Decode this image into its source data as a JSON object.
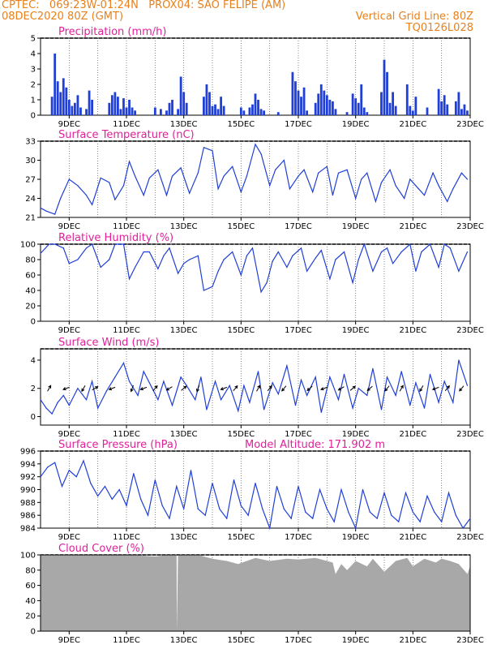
{
  "header": {
    "line1_left": "CPTEC:   069:23W-01:24N   PROX04: SAO FELIPE (AM)",
    "line2_left": "08DEC2020 80Z (GMT)",
    "line2_right": "Vertical Grid Line: 80Z",
    "line3_right": "TQ0126L028"
  },
  "colors": {
    "header": "#e8801c",
    "panel_title": "#e0209a",
    "series": "#1f3fd6",
    "cloud_fill": "#a8a8a8",
    "grid": "#555555"
  },
  "chart_data": [
    {
      "id": "precip",
      "type": "bar",
      "title": "Precipitation (mm/h)",
      "ylim": [
        0,
        5
      ],
      "yticks": [
        0,
        1,
        2,
        3,
        4,
        5
      ],
      "x_range": [
        8.0,
        23.0
      ],
      "x_tick_days": [
        9,
        11,
        13,
        15,
        17,
        19,
        21,
        23
      ],
      "x_tick_labels": [
        "9DEC",
        "11DEC",
        "13DEC",
        "15DEC",
        "17DEC",
        "19DEC",
        "21DEC",
        "23DEC"
      ],
      "x": [
        8.4,
        8.5,
        8.6,
        8.7,
        8.8,
        8.9,
        9.0,
        9.1,
        9.2,
        9.3,
        9.4,
        9.6,
        9.7,
        9.8,
        10.4,
        10.5,
        10.6,
        10.7,
        10.8,
        10.9,
        11.0,
        11.1,
        11.2,
        11.3,
        12.0,
        12.2,
        12.4,
        12.5,
        12.6,
        12.8,
        12.9,
        13.0,
        13.1,
        13.7,
        13.8,
        13.9,
        14.0,
        14.1,
        14.2,
        14.3,
        14.4,
        15.0,
        15.1,
        15.3,
        15.4,
        15.5,
        15.6,
        15.7,
        15.8,
        16.3,
        16.8,
        16.9,
        17.0,
        17.1,
        17.2,
        17.3,
        17.6,
        17.7,
        17.8,
        17.9,
        18.0,
        18.1,
        18.2,
        18.3,
        18.7,
        18.9,
        19.0,
        19.1,
        19.2,
        19.3,
        19.4,
        19.9,
        20.0,
        20.1,
        20.2,
        20.3,
        20.4,
        20.8,
        20.9,
        21.0,
        21.1,
        21.5,
        21.9,
        22.0,
        22.1,
        22.2,
        22.5,
        22.6,
        22.7,
        22.8,
        22.9
      ],
      "values": [
        1.2,
        4.0,
        2.2,
        1.5,
        2.4,
        1.8,
        1.0,
        0.6,
        0.8,
        1.3,
        0.5,
        0.4,
        1.6,
        1.0,
        0.8,
        1.3,
        1.5,
        1.2,
        0.4,
        1.1,
        0.5,
        1.0,
        0.5,
        0.3,
        0.5,
        0.4,
        0.3,
        0.8,
        1.0,
        0.4,
        2.5,
        1.5,
        0.8,
        1.2,
        2.0,
        1.5,
        0.6,
        0.7,
        0.4,
        1.2,
        0.6,
        0.5,
        0.3,
        0.5,
        0.7,
        1.4,
        1.0,
        0.4,
        0.3,
        0.2,
        2.8,
        2.2,
        1.6,
        1.2,
        1.8,
        0.3,
        0.8,
        1.4,
        2.0,
        1.6,
        1.3,
        1.0,
        0.9,
        0.4,
        0.2,
        1.4,
        1.1,
        0.8,
        2.0,
        0.5,
        0.2,
        1.5,
        3.6,
        2.8,
        0.8,
        1.5,
        0.6,
        2.0,
        0.6,
        0.3,
        1.2,
        0.5,
        1.7,
        0.9,
        1.3,
        0.7,
        0.9,
        1.5,
        0.4,
        0.7,
        0.3
      ]
    },
    {
      "id": "temp",
      "type": "line",
      "title": "Surface Temperature (nC)",
      "ylim": [
        21,
        33
      ],
      "yticks": [
        21,
        24,
        27,
        30,
        33
      ],
      "x_range": [
        8.0,
        23.0
      ],
      "x_tick_days": [
        9,
        11,
        13,
        15,
        17,
        19,
        21,
        23
      ],
      "x_tick_labels": [
        "9DEC",
        "11DEC",
        "13DEC",
        "15DEC",
        "17DEC",
        "19DEC",
        "21DEC",
        "23DEC"
      ],
      "x": [
        8.0,
        8.2,
        8.5,
        8.7,
        9.0,
        9.3,
        9.6,
        9.8,
        10.1,
        10.4,
        10.6,
        10.9,
        11.1,
        11.3,
        11.6,
        11.8,
        12.1,
        12.4,
        12.6,
        12.9,
        13.2,
        13.5,
        13.7,
        14.0,
        14.2,
        14.4,
        14.7,
        15.0,
        15.2,
        15.5,
        15.7,
        16.0,
        16.2,
        16.5,
        16.7,
        17.0,
        17.2,
        17.5,
        17.7,
        18.0,
        18.2,
        18.4,
        18.7,
        19.0,
        19.2,
        19.4,
        19.7,
        19.9,
        20.2,
        20.4,
        20.7,
        20.9,
        21.2,
        21.4,
        21.7,
        21.9,
        22.2,
        22.4,
        22.7,
        22.9
      ],
      "values": [
        22.5,
        22.0,
        21.5,
        24.0,
        27.0,
        26.0,
        24.5,
        23.0,
        27.2,
        26.5,
        23.8,
        26.0,
        29.8,
        27.5,
        24.5,
        27.2,
        28.5,
        24.5,
        27.5,
        28.8,
        24.8,
        28.0,
        32.0,
        31.5,
        25.5,
        27.5,
        29.0,
        25.0,
        27.5,
        32.5,
        31.0,
        26.0,
        28.5,
        30.0,
        25.5,
        27.5,
        28.5,
        25.0,
        28.0,
        29.0,
        24.5,
        28.0,
        28.5,
        24.0,
        27.0,
        28.0,
        23.5,
        26.5,
        28.5,
        26.0,
        24.0,
        27.0,
        25.5,
        24.5,
        28.0,
        26.0,
        23.5,
        25.5,
        28.0,
        27.0
      ]
    },
    {
      "id": "rh",
      "type": "line",
      "title": "Relative Humidity (%)",
      "ylim": [
        0,
        100
      ],
      "yticks": [
        0,
        20,
        40,
        60,
        80,
        100
      ],
      "x_range": [
        8.0,
        23.0
      ],
      "x_tick_days": [
        9,
        11,
        13,
        15,
        17,
        19,
        21,
        23
      ],
      "x_tick_labels": [
        "9DEC",
        "11DEC",
        "13DEC",
        "15DEC",
        "17DEC",
        "19DEC",
        "21DEC",
        "23DEC"
      ],
      "x": [
        8.0,
        8.3,
        8.5,
        8.8,
        9.0,
        9.3,
        9.6,
        9.8,
        10.1,
        10.4,
        10.6,
        10.9,
        11.1,
        11.3,
        11.6,
        11.8,
        12.1,
        12.3,
        12.5,
        12.8,
        13.0,
        13.2,
        13.5,
        13.7,
        14.0,
        14.2,
        14.4,
        14.7,
        15.0,
        15.2,
        15.4,
        15.7,
        15.9,
        16.1,
        16.3,
        16.6,
        16.8,
        17.1,
        17.3,
        17.6,
        17.8,
        18.1,
        18.3,
        18.6,
        18.9,
        19.1,
        19.3,
        19.6,
        19.9,
        20.1,
        20.3,
        20.6,
        20.9,
        21.1,
        21.3,
        21.6,
        21.9,
        22.1,
        22.3,
        22.6,
        22.9
      ],
      "values": [
        88,
        100,
        100,
        95,
        75,
        80,
        95,
        100,
        70,
        80,
        100,
        100,
        55,
        70,
        90,
        90,
        68,
        85,
        95,
        62,
        75,
        80,
        85,
        40,
        45,
        65,
        80,
        90,
        60,
        85,
        95,
        38,
        50,
        78,
        90,
        70,
        85,
        95,
        65,
        82,
        92,
        55,
        80,
        90,
        50,
        80,
        100,
        65,
        90,
        95,
        75,
        90,
        100,
        65,
        90,
        100,
        70,
        100,
        95,
        65,
        90
      ]
    },
    {
      "id": "wind",
      "type": "line",
      "title": "Surface Wind (m/s)",
      "ylim": [
        -0.6,
        4.8
      ],
      "yticks": [
        0,
        2,
        4
      ],
      "x_range": [
        8.0,
        23.0
      ],
      "x_tick_days": [
        9,
        11,
        13,
        15,
        17,
        19,
        21,
        23
      ],
      "x_tick_labels": [
        "9DEC",
        "11DEC",
        "13DEC",
        "15DEC",
        "17DEC",
        "19DEC",
        "21DEC",
        "23DEC"
      ],
      "x": [
        8.0,
        8.2,
        8.4,
        8.6,
        8.8,
        9.0,
        9.3,
        9.6,
        9.8,
        10.0,
        10.3,
        10.6,
        10.9,
        11.1,
        11.4,
        11.6,
        11.9,
        12.1,
        12.3,
        12.6,
        12.9,
        13.1,
        13.4,
        13.6,
        13.8,
        14.1,
        14.3,
        14.6,
        14.9,
        15.1,
        15.3,
        15.6,
        15.8,
        16.1,
        16.3,
        16.6,
        16.9,
        17.1,
        17.3,
        17.6,
        17.8,
        18.1,
        18.4,
        18.6,
        18.9,
        19.1,
        19.4,
        19.6,
        19.9,
        20.1,
        20.4,
        20.6,
        20.9,
        21.1,
        21.4,
        21.6,
        21.9,
        22.1,
        22.4,
        22.6,
        22.9
      ],
      "values": [
        1.2,
        0.6,
        0.2,
        1.0,
        1.5,
        0.8,
        2.0,
        1.2,
        2.5,
        0.6,
        1.8,
        2.8,
        3.8,
        2.5,
        1.5,
        3.2,
        2.0,
        1.2,
        2.5,
        0.8,
        2.8,
        2.2,
        1.2,
        2.8,
        0.5,
        2.5,
        1.2,
        2.2,
        0.4,
        2.2,
        1.0,
        3.2,
        0.5,
        2.4,
        1.6,
        3.6,
        0.8,
        2.6,
        1.5,
        2.8,
        0.3,
        2.8,
        1.2,
        3.0,
        0.6,
        2.0,
        1.5,
        3.4,
        0.5,
        2.8,
        1.5,
        3.2,
        0.8,
        2.4,
        0.6,
        3.0,
        1.0,
        2.5,
        1.0,
        4.0,
        2.2
      ],
      "arrows": {
        "x": [
          8.3,
          8.9,
          9.5,
          9.9,
          10.5,
          11.2,
          11.6,
          12.0,
          12.5,
          13.0,
          13.5,
          14.4,
          14.8,
          15.6,
          16.0,
          16.5,
          17.4,
          17.9,
          18.5,
          18.9,
          19.5,
          20.1,
          20.6,
          21.3,
          21.8,
          22.2,
          22.7
        ],
        "dir_deg": [
          60,
          200,
          240,
          30,
          200,
          250,
          200,
          50,
          210,
          40,
          250,
          200,
          50,
          60,
          50,
          230,
          220,
          200,
          210,
          40,
          220,
          230,
          60,
          240,
          200,
          50,
          230
        ]
      }
    },
    {
      "id": "pressure",
      "type": "line",
      "title": "Surface Pressure (hPa)",
      "annotation": "Model Altitude: 171.902 m",
      "ylim": [
        984,
        996
      ],
      "yticks": [
        984,
        986,
        988,
        990,
        992,
        994,
        996
      ],
      "x_range": [
        8.0,
        23.0
      ],
      "x_tick_days": [
        9,
        11,
        13,
        15,
        17,
        19,
        21,
        23
      ],
      "x_tick_labels": [
        "9DEC",
        "11DEC",
        "13DEC",
        "15DEC",
        "17DEC",
        "19DEC",
        "21DEC",
        "23DEC"
      ],
      "x": [
        8.0,
        8.25,
        8.5,
        8.75,
        9.0,
        9.25,
        9.5,
        9.75,
        10.0,
        10.25,
        10.5,
        10.75,
        11.0,
        11.25,
        11.5,
        11.75,
        12.0,
        12.25,
        12.5,
        12.75,
        13.0,
        13.25,
        13.5,
        13.75,
        14.0,
        14.25,
        14.5,
        14.75,
        15.0,
        15.25,
        15.5,
        15.75,
        16.0,
        16.25,
        16.5,
        16.75,
        17.0,
        17.25,
        17.5,
        17.75,
        18.0,
        18.25,
        18.5,
        18.75,
        19.0,
        19.25,
        19.5,
        19.75,
        20.0,
        20.25,
        20.5,
        20.75,
        21.0,
        21.25,
        21.5,
        21.75,
        22.0,
        22.25,
        22.5,
        22.75,
        23.0
      ],
      "values": [
        992.0,
        993.5,
        994.2,
        990.5,
        993.0,
        992.0,
        994.5,
        991.0,
        989.0,
        990.5,
        988.5,
        990.0,
        987.5,
        992.5,
        988.5,
        986.0,
        991.5,
        987.5,
        985.5,
        990.5,
        987.0,
        993.0,
        987.0,
        986.0,
        991.0,
        987.0,
        985.5,
        991.5,
        987.5,
        986.0,
        991.0,
        987.0,
        984.0,
        990.5,
        987.0,
        985.5,
        990.5,
        986.5,
        985.5,
        990.0,
        987.0,
        985.0,
        990.0,
        986.5,
        984.0,
        990.0,
        986.5,
        985.5,
        989.5,
        986.0,
        985.0,
        989.5,
        986.5,
        985.0,
        989.0,
        986.5,
        985.0,
        989.5,
        986.0,
        984.0,
        985.5
      ]
    },
    {
      "id": "cloud",
      "type": "area",
      "title": "Cloud Cover (%)",
      "ylim": [
        0,
        100
      ],
      "yticks": [
        0,
        20,
        40,
        60,
        80,
        100
      ],
      "x_range": [
        8.0,
        23.0
      ],
      "x_tick_days": [
        9,
        11,
        13,
        15,
        17,
        19,
        21,
        23
      ],
      "x_tick_labels": [
        "9DEC",
        "11DEC",
        "13DEC",
        "15DEC",
        "17DEC",
        "19DEC",
        "21DEC",
        "23DEC"
      ],
      "x": [
        8.0,
        9.0,
        10.0,
        11.0,
        12.0,
        12.5,
        12.75,
        12.76,
        12.8,
        13.5,
        14.0,
        14.5,
        14.9,
        15.5,
        16.0,
        16.6,
        17.0,
        17.6,
        18.2,
        18.3,
        18.5,
        18.7,
        19.0,
        19.4,
        19.6,
        20.0,
        20.4,
        20.8,
        21.0,
        21.4,
        21.8,
        22.0,
        22.3,
        22.6,
        22.9,
        23.0
      ],
      "values": [
        100,
        100,
        100,
        100,
        98,
        100,
        100,
        0,
        100,
        100,
        95,
        92,
        88,
        96,
        92,
        95,
        94,
        96,
        90,
        75,
        88,
        80,
        92,
        85,
        95,
        78,
        92,
        96,
        85,
        95,
        90,
        95,
        92,
        88,
        75,
        85
      ]
    }
  ]
}
